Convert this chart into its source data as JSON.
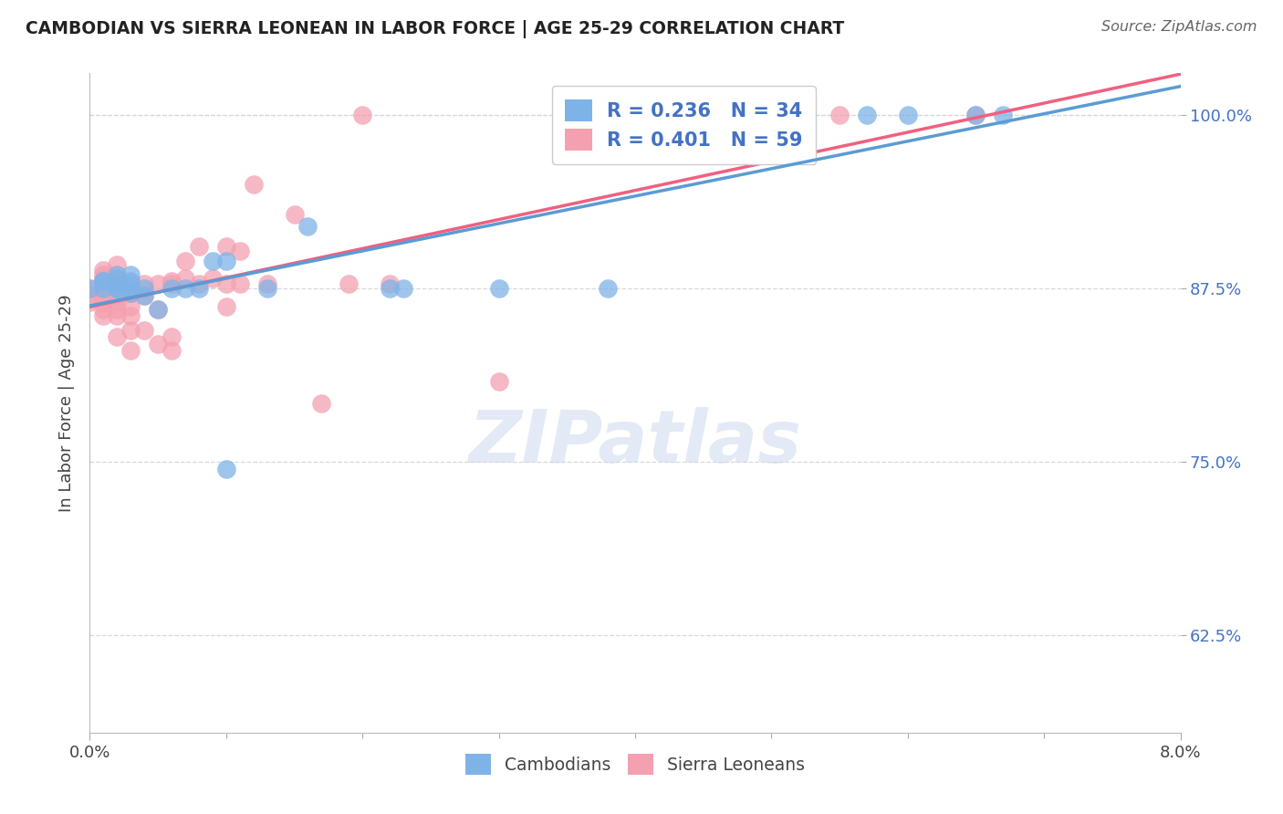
{
  "title": "CAMBODIAN VS SIERRA LEONEAN IN LABOR FORCE | AGE 25-29 CORRELATION CHART",
  "source": "Source: ZipAtlas.com",
  "ylabel": "In Labor Force | Age 25-29",
  "xlim": [
    0.0,
    0.08
  ],
  "ylim": [
    0.555,
    1.03
  ],
  "ytick_positions": [
    0.625,
    0.75,
    0.875,
    1.0
  ],
  "ytick_labels": [
    "62.5%",
    "75.0%",
    "87.5%",
    "100.0%"
  ],
  "watermark": "ZIPatlas",
  "legend_R_cambodian": "R = 0.236",
  "legend_N_cambodian": "N = 34",
  "legend_R_sierra": "R = 0.401",
  "legend_N_sierra": "N = 59",
  "cambodian_color": "#7EB3E8",
  "sierra_color": "#F4A0B0",
  "trendline_cambodian_color": "#5B9BD5",
  "trendline_sierra_color": "#F06080",
  "cambodian_x": [
    0.0,
    0.001,
    0.001,
    0.001,
    0.002,
    0.002,
    0.002,
    0.002,
    0.002,
    0.003,
    0.003,
    0.003,
    0.003,
    0.003,
    0.004,
    0.004,
    0.005,
    0.006,
    0.007,
    0.008,
    0.009,
    0.01,
    0.01,
    0.013,
    0.016,
    0.022,
    0.023,
    0.03,
    0.038,
    0.038,
    0.057,
    0.06,
    0.065,
    0.067
  ],
  "cambodian_y": [
    0.875,
    0.875,
    0.88,
    0.88,
    0.875,
    0.875,
    0.878,
    0.882,
    0.885,
    0.872,
    0.875,
    0.875,
    0.88,
    0.885,
    0.87,
    0.875,
    0.86,
    0.875,
    0.875,
    0.875,
    0.895,
    0.895,
    0.745,
    0.875,
    0.92,
    0.875,
    0.875,
    0.875,
    0.875,
    1.0,
    1.0,
    1.0,
    1.0,
    1.0
  ],
  "sierra_x": [
    0.0,
    0.0,
    0.0,
    0.001,
    0.001,
    0.001,
    0.001,
    0.001,
    0.001,
    0.001,
    0.001,
    0.001,
    0.001,
    0.002,
    0.002,
    0.002,
    0.002,
    0.002,
    0.002,
    0.002,
    0.002,
    0.002,
    0.003,
    0.003,
    0.003,
    0.003,
    0.003,
    0.003,
    0.004,
    0.004,
    0.004,
    0.005,
    0.005,
    0.005,
    0.006,
    0.006,
    0.006,
    0.006,
    0.007,
    0.007,
    0.008,
    0.008,
    0.009,
    0.01,
    0.01,
    0.01,
    0.011,
    0.011,
    0.012,
    0.013,
    0.015,
    0.017,
    0.019,
    0.02,
    0.022,
    0.03,
    0.038,
    0.055,
    0.065
  ],
  "sierra_y": [
    0.865,
    0.87,
    0.875,
    0.855,
    0.86,
    0.865,
    0.87,
    0.875,
    0.878,
    0.88,
    0.882,
    0.885,
    0.888,
    0.84,
    0.855,
    0.86,
    0.865,
    0.87,
    0.875,
    0.878,
    0.882,
    0.892,
    0.83,
    0.845,
    0.855,
    0.862,
    0.872,
    0.878,
    0.845,
    0.87,
    0.878,
    0.835,
    0.86,
    0.878,
    0.83,
    0.84,
    0.878,
    0.88,
    0.882,
    0.895,
    0.878,
    0.905,
    0.882,
    0.878,
    0.905,
    0.862,
    0.878,
    0.902,
    0.95,
    0.878,
    0.928,
    0.792,
    0.878,
    1.0,
    0.878,
    0.808,
    1.0,
    1.0,
    1.0
  ],
  "background_color": "#ffffff",
  "grid_color": "#d8d8d8"
}
